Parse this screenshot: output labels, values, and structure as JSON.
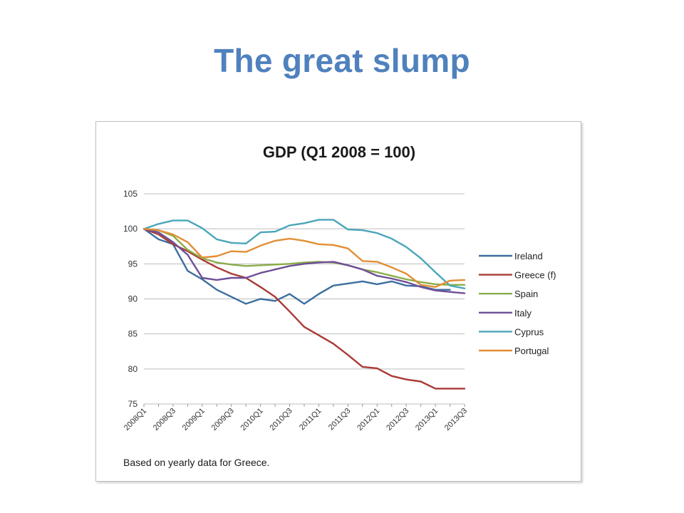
{
  "slide": {
    "title": "The great slump"
  },
  "chart_data": {
    "type": "line",
    "title": "GDP (Q1 2008 = 100)",
    "footnote": "Based on yearly data for Greece.",
    "xlabel": "",
    "ylabel": "",
    "ylim": [
      75,
      105
    ],
    "yticks": [
      75,
      80,
      85,
      90,
      95,
      100,
      105
    ],
    "grid": true,
    "legend_position": "right",
    "x": [
      "2008Q1",
      "2008Q2",
      "2008Q3",
      "2008Q4",
      "2009Q1",
      "2009Q2",
      "2009Q3",
      "2009Q4",
      "2010Q1",
      "2010Q2",
      "2010Q3",
      "2010Q4",
      "2011Q1",
      "2011Q2",
      "2011Q3",
      "2011Q4",
      "2012Q1",
      "2012Q2",
      "2012Q3",
      "2012Q4",
      "2013Q1",
      "2013Q2",
      "2013Q3"
    ],
    "x_tick_labels": [
      "2008Q1",
      "2008Q3",
      "2009Q1",
      "2009Q3",
      "2010Q1",
      "2010Q3",
      "2011Q1",
      "2011Q3",
      "2012Q1",
      "2012Q3",
      "2013Q1",
      "2013Q3"
    ],
    "series": [
      {
        "name": "Ireland",
        "color": "#3c6e9f",
        "values": [
          100,
          98.5,
          97.8,
          94,
          92.8,
          91.3,
          90.3,
          89.3,
          90,
          89.7,
          90.7,
          89.3,
          90.7,
          91.9,
          92.2,
          92.5,
          92.1,
          92.5,
          91.9,
          91.8,
          91.3,
          91.3,
          null
        ]
      },
      {
        "name": "Greece (f)",
        "color": "#a93a36",
        "values": [
          100,
          99.2,
          97.8,
          96.8,
          95.6,
          94.5,
          93.6,
          93,
          91.7,
          90.3,
          88.2,
          86,
          84.8,
          83.6,
          82,
          80.3,
          80.1,
          79,
          78.5,
          78.2,
          77.2,
          77.2,
          77.2
        ]
      },
      {
        "name": "Spain",
        "color": "#8aad4a",
        "values": [
          100,
          99.8,
          99,
          97,
          95.8,
          95.2,
          94.9,
          94.7,
          94.8,
          94.9,
          95,
          95.2,
          95.3,
          95.2,
          94.8,
          94.2,
          93.8,
          93.3,
          92.8,
          92.4,
          92.1,
          92,
          92
        ]
      },
      {
        "name": "Italy",
        "color": "#6f4f98",
        "values": [
          100,
          99.5,
          98.1,
          96.3,
          93,
          92.7,
          93,
          93,
          93.7,
          94.2,
          94.7,
          95,
          95.2,
          95.3,
          94.8,
          94.2,
          93.3,
          92.9,
          92.4,
          91.7,
          91.2,
          91,
          90.8
        ]
      },
      {
        "name": "Cyprus",
        "color": "#4aa6ba",
        "values": [
          100,
          100.7,
          101.2,
          101.2,
          100.1,
          98.5,
          98,
          97.9,
          99.5,
          99.6,
          100.5,
          100.8,
          101.3,
          101.3,
          99.9,
          99.8,
          99.4,
          98.6,
          97.4,
          95.8,
          93.8,
          91.9,
          91.5
        ]
      },
      {
        "name": "Portugal",
        "color": "#e28e34",
        "values": [
          100,
          99.8,
          99.2,
          98.1,
          95.9,
          96.1,
          96.8,
          96.7,
          97.6,
          98.3,
          98.6,
          98.3,
          97.8,
          97.7,
          97.2,
          95.4,
          95.3,
          94.5,
          93.6,
          92,
          91.7,
          92.6,
          92.7
        ]
      }
    ]
  }
}
